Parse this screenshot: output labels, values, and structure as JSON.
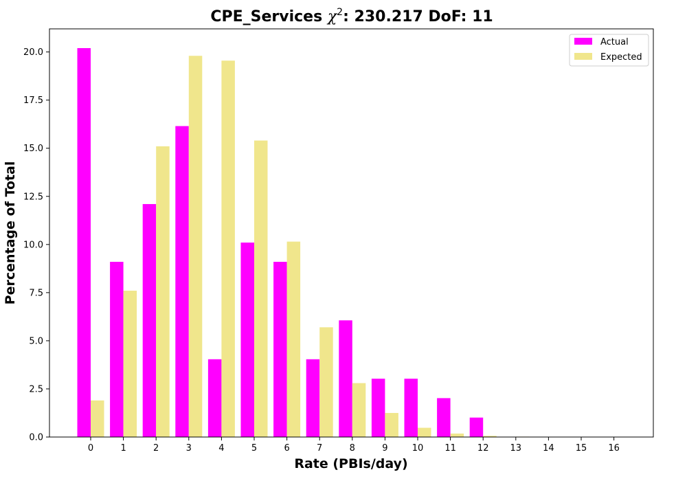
{
  "chart_data": {
    "type": "bar",
    "title_prefix": "CPE_Services ",
    "title_chi": "χ",
    "title_sup": "2",
    "title_suffix": ": 230.217 DoF: 11",
    "xlabel": "Rate (PBIs/day)",
    "ylabel": "Percentage of Total",
    "categories": [
      "0",
      "1",
      "2",
      "3",
      "4",
      "5",
      "6",
      "7",
      "8",
      "9",
      "10",
      "11",
      "12",
      "13",
      "14",
      "15",
      "16"
    ],
    "ylim": [
      0,
      21.2
    ],
    "yticks": [
      "0.0",
      "2.5",
      "5.0",
      "7.5",
      "10.0",
      "12.5",
      "15.0",
      "17.5",
      "20.0"
    ],
    "grid": false,
    "legend_position": "top-right",
    "series": [
      {
        "name": "Actual",
        "color": "#ff00ff",
        "values": [
          20.2,
          9.1,
          12.1,
          16.15,
          4.04,
          10.1,
          9.1,
          4.04,
          6.06,
          3.03,
          3.03,
          2.02,
          1.01,
          0,
          0,
          0,
          0
        ]
      },
      {
        "name": "Expected",
        "color": "#f0e68c",
        "values": [
          1.9,
          7.6,
          15.1,
          19.8,
          19.55,
          15.4,
          10.15,
          5.7,
          2.8,
          1.25,
          0.48,
          0.18,
          0.06,
          0.02,
          0.005,
          0.001,
          0
        ]
      }
    ]
  }
}
